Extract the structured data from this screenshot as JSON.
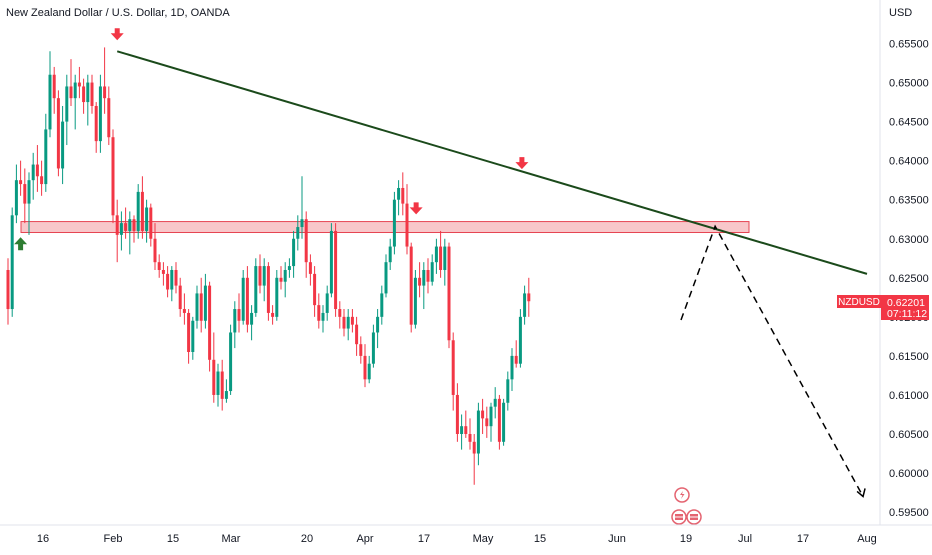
{
  "header": {
    "title": "New Zealand Dollar / U.S. Dollar, 1D, OANDA"
  },
  "axis": {
    "currency": "USD"
  },
  "price_tag": {
    "symbol": "NZDUSD",
    "price": "0.62201",
    "countdown": "07:11:12"
  },
  "colors": {
    "up": "#089981",
    "down": "#f23645",
    "trendline": "#1b4a1b",
    "zone_fill": "#f5a9ad",
    "zone_border": "#e64553",
    "marker_down": "#f23645",
    "marker_up": "#2e7d32",
    "tag_bg": "#f23645"
  },
  "events": [
    {
      "icon": "lightning-icon"
    },
    {
      "icon": "flag-icon"
    },
    {
      "icon": "flag-icon"
    }
  ],
  "chart_data": {
    "type": "candlestick",
    "y_ticks": [
      "0.65500",
      "0.65000",
      "0.64500",
      "0.64000",
      "0.63500",
      "0.63000",
      "0.62500",
      "0.62000",
      "0.61500",
      "0.61000",
      "0.60500",
      "0.60000",
      "0.59500"
    ],
    "ylim": [
      0.5935,
      0.6575
    ],
    "x_ticks": [
      "16",
      "Feb",
      "15",
      "Mar",
      "20",
      "Apr",
      "17",
      "May",
      "15",
      "Jun",
      "19",
      "Jul",
      "17",
      "Aug"
    ],
    "support_zone": [
      0.6308,
      0.6322
    ],
    "trendline": {
      "start": {
        "x": "Feb 2",
        "y": 0.654
      },
      "end": {
        "x": "Aug 1",
        "y": 0.6255
      }
    },
    "projection_path": [
      {
        "x": "Jun 16",
        "y": 0.6196
      },
      {
        "x": "Jun 24",
        "y": 0.6316
      },
      {
        "x": "Jul 31",
        "y": 0.597
      }
    ],
    "markers": [
      {
        "type": "down",
        "x": "Feb 2",
        "y": 0.6558
      },
      {
        "type": "up",
        "x": "Jan 10",
        "y": 0.6293
      },
      {
        "type": "down",
        "x": "Apr 14",
        "y": 0.6335
      },
      {
        "type": "down",
        "x": "May 10",
        "y": 0.6393
      }
    ],
    "candles": [
      {
        "o": 0.626,
        "h": 0.6275,
        "l": 0.619,
        "c": 0.621
      },
      {
        "o": 0.621,
        "h": 0.634,
        "l": 0.62,
        "c": 0.633
      },
      {
        "o": 0.633,
        "h": 0.6395,
        "l": 0.632,
        "c": 0.6375
      },
      {
        "o": 0.6375,
        "h": 0.64,
        "l": 0.6355,
        "c": 0.637
      },
      {
        "o": 0.637,
        "h": 0.639,
        "l": 0.632,
        "c": 0.6345
      },
      {
        "o": 0.6345,
        "h": 0.6385,
        "l": 0.6305,
        "c": 0.6375
      },
      {
        "o": 0.6375,
        "h": 0.641,
        "l": 0.635,
        "c": 0.6395
      },
      {
        "o": 0.6395,
        "h": 0.642,
        "l": 0.636,
        "c": 0.638
      },
      {
        "o": 0.638,
        "h": 0.64,
        "l": 0.6355,
        "c": 0.637
      },
      {
        "o": 0.637,
        "h": 0.646,
        "l": 0.636,
        "c": 0.644
      },
      {
        "o": 0.644,
        "h": 0.654,
        "l": 0.643,
        "c": 0.651
      },
      {
        "o": 0.651,
        "h": 0.652,
        "l": 0.646,
        "c": 0.648
      },
      {
        "o": 0.648,
        "h": 0.649,
        "l": 0.638,
        "c": 0.639
      },
      {
        "o": 0.639,
        "h": 0.647,
        "l": 0.637,
        "c": 0.645
      },
      {
        "o": 0.645,
        "h": 0.651,
        "l": 0.642,
        "c": 0.6495
      },
      {
        "o": 0.6495,
        "h": 0.653,
        "l": 0.647,
        "c": 0.648
      },
      {
        "o": 0.648,
        "h": 0.651,
        "l": 0.644,
        "c": 0.65
      },
      {
        "o": 0.65,
        "h": 0.652,
        "l": 0.648,
        "c": 0.6495
      },
      {
        "o": 0.6495,
        "h": 0.6505,
        "l": 0.646,
        "c": 0.6475
      },
      {
        "o": 0.6475,
        "h": 0.651,
        "l": 0.6445,
        "c": 0.65
      },
      {
        "o": 0.65,
        "h": 0.651,
        "l": 0.646,
        "c": 0.647
      },
      {
        "o": 0.647,
        "h": 0.6475,
        "l": 0.641,
        "c": 0.6425
      },
      {
        "o": 0.6425,
        "h": 0.651,
        "l": 0.641,
        "c": 0.6495
      },
      {
        "o": 0.6495,
        "h": 0.6545,
        "l": 0.646,
        "c": 0.648
      },
      {
        "o": 0.648,
        "h": 0.6495,
        "l": 0.642,
        "c": 0.643
      },
      {
        "o": 0.643,
        "h": 0.644,
        "l": 0.632,
        "c": 0.633
      },
      {
        "o": 0.633,
        "h": 0.635,
        "l": 0.627,
        "c": 0.6305
      },
      {
        "o": 0.6305,
        "h": 0.6335,
        "l": 0.6285,
        "c": 0.632
      },
      {
        "o": 0.632,
        "h": 0.634,
        "l": 0.63,
        "c": 0.631
      },
      {
        "o": 0.631,
        "h": 0.6335,
        "l": 0.628,
        "c": 0.6325
      },
      {
        "o": 0.6325,
        "h": 0.633,
        "l": 0.6295,
        "c": 0.631
      },
      {
        "o": 0.631,
        "h": 0.637,
        "l": 0.63,
        "c": 0.636
      },
      {
        "o": 0.636,
        "h": 0.638,
        "l": 0.63,
        "c": 0.631
      },
      {
        "o": 0.631,
        "h": 0.635,
        "l": 0.6295,
        "c": 0.634
      },
      {
        "o": 0.634,
        "h": 0.6345,
        "l": 0.629,
        "c": 0.63
      },
      {
        "o": 0.63,
        "h": 0.632,
        "l": 0.626,
        "c": 0.627
      },
      {
        "o": 0.627,
        "h": 0.628,
        "l": 0.625,
        "c": 0.626
      },
      {
        "o": 0.626,
        "h": 0.627,
        "l": 0.624,
        "c": 0.6255
      },
      {
        "o": 0.6255,
        "h": 0.6265,
        "l": 0.6225,
        "c": 0.6235
      },
      {
        "o": 0.6235,
        "h": 0.6265,
        "l": 0.622,
        "c": 0.626
      },
      {
        "o": 0.626,
        "h": 0.627,
        "l": 0.623,
        "c": 0.624
      },
      {
        "o": 0.624,
        "h": 0.625,
        "l": 0.62,
        "c": 0.621
      },
      {
        "o": 0.621,
        "h": 0.623,
        "l": 0.619,
        "c": 0.6205
      },
      {
        "o": 0.6205,
        "h": 0.621,
        "l": 0.614,
        "c": 0.6155
      },
      {
        "o": 0.6155,
        "h": 0.62,
        "l": 0.6145,
        "c": 0.6195
      },
      {
        "o": 0.6195,
        "h": 0.624,
        "l": 0.6185,
        "c": 0.623
      },
      {
        "o": 0.623,
        "h": 0.625,
        "l": 0.618,
        "c": 0.6195
      },
      {
        "o": 0.6195,
        "h": 0.6255,
        "l": 0.6185,
        "c": 0.624
      },
      {
        "o": 0.624,
        "h": 0.6245,
        "l": 0.613,
        "c": 0.6145
      },
      {
        "o": 0.6145,
        "h": 0.618,
        "l": 0.609,
        "c": 0.61
      },
      {
        "o": 0.61,
        "h": 0.614,
        "l": 0.6085,
        "c": 0.613
      },
      {
        "o": 0.613,
        "h": 0.6145,
        "l": 0.608,
        "c": 0.6095
      },
      {
        "o": 0.6095,
        "h": 0.612,
        "l": 0.609,
        "c": 0.6105
      },
      {
        "o": 0.6105,
        "h": 0.619,
        "l": 0.61,
        "c": 0.618
      },
      {
        "o": 0.618,
        "h": 0.622,
        "l": 0.616,
        "c": 0.621
      },
      {
        "o": 0.621,
        "h": 0.623,
        "l": 0.618,
        "c": 0.6195
      },
      {
        "o": 0.6195,
        "h": 0.626,
        "l": 0.619,
        "c": 0.625
      },
      {
        "o": 0.625,
        "h": 0.6265,
        "l": 0.618,
        "c": 0.619
      },
      {
        "o": 0.619,
        "h": 0.6215,
        "l": 0.617,
        "c": 0.6205
      },
      {
        "o": 0.6205,
        "h": 0.6275,
        "l": 0.62,
        "c": 0.6265
      },
      {
        "o": 0.6265,
        "h": 0.628,
        "l": 0.623,
        "c": 0.624
      },
      {
        "o": 0.624,
        "h": 0.6275,
        "l": 0.622,
        "c": 0.6265
      },
      {
        "o": 0.6265,
        "h": 0.627,
        "l": 0.6195,
        "c": 0.6205
      },
      {
        "o": 0.6205,
        "h": 0.6215,
        "l": 0.619,
        "c": 0.62
      },
      {
        "o": 0.62,
        "h": 0.626,
        "l": 0.6195,
        "c": 0.625
      },
      {
        "o": 0.625,
        "h": 0.6265,
        "l": 0.6235,
        "c": 0.6245
      },
      {
        "o": 0.6245,
        "h": 0.627,
        "l": 0.6225,
        "c": 0.626
      },
      {
        "o": 0.626,
        "h": 0.6275,
        "l": 0.625,
        "c": 0.6265
      },
      {
        "o": 0.6265,
        "h": 0.631,
        "l": 0.625,
        "c": 0.63
      },
      {
        "o": 0.63,
        "h": 0.633,
        "l": 0.6285,
        "c": 0.6315
      },
      {
        "o": 0.6315,
        "h": 0.638,
        "l": 0.63,
        "c": 0.6325
      },
      {
        "o": 0.6325,
        "h": 0.6335,
        "l": 0.625,
        "c": 0.627
      },
      {
        "o": 0.627,
        "h": 0.628,
        "l": 0.624,
        "c": 0.6255
      },
      {
        "o": 0.6255,
        "h": 0.6265,
        "l": 0.62,
        "c": 0.6215
      },
      {
        "o": 0.6215,
        "h": 0.623,
        "l": 0.6185,
        "c": 0.6195
      },
      {
        "o": 0.6195,
        "h": 0.6215,
        "l": 0.618,
        "c": 0.6205
      },
      {
        "o": 0.6205,
        "h": 0.624,
        "l": 0.6195,
        "c": 0.623
      },
      {
        "o": 0.623,
        "h": 0.632,
        "l": 0.6225,
        "c": 0.631
      },
      {
        "o": 0.631,
        "h": 0.632,
        "l": 0.62,
        "c": 0.621
      },
      {
        "o": 0.621,
        "h": 0.622,
        "l": 0.6185,
        "c": 0.62
      },
      {
        "o": 0.62,
        "h": 0.621,
        "l": 0.6175,
        "c": 0.6185
      },
      {
        "o": 0.6185,
        "h": 0.621,
        "l": 0.617,
        "c": 0.62
      },
      {
        "o": 0.62,
        "h": 0.621,
        "l": 0.618,
        "c": 0.619
      },
      {
        "o": 0.619,
        "h": 0.62,
        "l": 0.615,
        "c": 0.6165
      },
      {
        "o": 0.6165,
        "h": 0.6175,
        "l": 0.614,
        "c": 0.615
      },
      {
        "o": 0.615,
        "h": 0.6165,
        "l": 0.611,
        "c": 0.612
      },
      {
        "o": 0.612,
        "h": 0.615,
        "l": 0.6115,
        "c": 0.614
      },
      {
        "o": 0.614,
        "h": 0.619,
        "l": 0.6135,
        "c": 0.618
      },
      {
        "o": 0.618,
        "h": 0.621,
        "l": 0.616,
        "c": 0.62
      },
      {
        "o": 0.62,
        "h": 0.624,
        "l": 0.619,
        "c": 0.623
      },
      {
        "o": 0.623,
        "h": 0.628,
        "l": 0.6225,
        "c": 0.627
      },
      {
        "o": 0.627,
        "h": 0.63,
        "l": 0.626,
        "c": 0.629
      },
      {
        "o": 0.629,
        "h": 0.636,
        "l": 0.628,
        "c": 0.635
      },
      {
        "o": 0.635,
        "h": 0.6375,
        "l": 0.633,
        "c": 0.6365
      },
      {
        "o": 0.6365,
        "h": 0.6385,
        "l": 0.633,
        "c": 0.6345
      },
      {
        "o": 0.6345,
        "h": 0.637,
        "l": 0.628,
        "c": 0.629
      },
      {
        "o": 0.629,
        "h": 0.6295,
        "l": 0.618,
        "c": 0.619
      },
      {
        "o": 0.619,
        "h": 0.626,
        "l": 0.6185,
        "c": 0.625
      },
      {
        "o": 0.625,
        "h": 0.627,
        "l": 0.6225,
        "c": 0.624
      },
      {
        "o": 0.624,
        "h": 0.627,
        "l": 0.621,
        "c": 0.626
      },
      {
        "o": 0.626,
        "h": 0.6275,
        "l": 0.623,
        "c": 0.6245
      },
      {
        "o": 0.6245,
        "h": 0.628,
        "l": 0.624,
        "c": 0.627
      },
      {
        "o": 0.627,
        "h": 0.63,
        "l": 0.6255,
        "c": 0.629
      },
      {
        "o": 0.629,
        "h": 0.631,
        "l": 0.625,
        "c": 0.626
      },
      {
        "o": 0.626,
        "h": 0.63,
        "l": 0.624,
        "c": 0.629
      },
      {
        "o": 0.629,
        "h": 0.6295,
        "l": 0.616,
        "c": 0.617
      },
      {
        "o": 0.617,
        "h": 0.618,
        "l": 0.608,
        "c": 0.61
      },
      {
        "o": 0.61,
        "h": 0.6115,
        "l": 0.604,
        "c": 0.605
      },
      {
        "o": 0.605,
        "h": 0.6075,
        "l": 0.603,
        "c": 0.606
      },
      {
        "o": 0.606,
        "h": 0.608,
        "l": 0.6045,
        "c": 0.605
      },
      {
        "o": 0.605,
        "h": 0.607,
        "l": 0.603,
        "c": 0.604
      },
      {
        "o": 0.604,
        "h": 0.605,
        "l": 0.5985,
        "c": 0.6025
      },
      {
        "o": 0.6025,
        "h": 0.609,
        "l": 0.601,
        "c": 0.608
      },
      {
        "o": 0.608,
        "h": 0.6095,
        "l": 0.605,
        "c": 0.607
      },
      {
        "o": 0.607,
        "h": 0.6085,
        "l": 0.6045,
        "c": 0.606
      },
      {
        "o": 0.606,
        "h": 0.609,
        "l": 0.604,
        "c": 0.6085
      },
      {
        "o": 0.6085,
        "h": 0.611,
        "l": 0.607,
        "c": 0.6095
      },
      {
        "o": 0.6095,
        "h": 0.61,
        "l": 0.603,
        "c": 0.604
      },
      {
        "o": 0.604,
        "h": 0.6095,
        "l": 0.6035,
        "c": 0.609
      },
      {
        "o": 0.609,
        "h": 0.613,
        "l": 0.608,
        "c": 0.612
      },
      {
        "o": 0.612,
        "h": 0.616,
        "l": 0.6105,
        "c": 0.615
      },
      {
        "o": 0.615,
        "h": 0.617,
        "l": 0.6135,
        "c": 0.614
      },
      {
        "o": 0.614,
        "h": 0.621,
        "l": 0.6135,
        "c": 0.62
      },
      {
        "o": 0.62,
        "h": 0.624,
        "l": 0.619,
        "c": 0.623
      },
      {
        "o": 0.623,
        "h": 0.625,
        "l": 0.62,
        "c": 0.622
      }
    ]
  }
}
